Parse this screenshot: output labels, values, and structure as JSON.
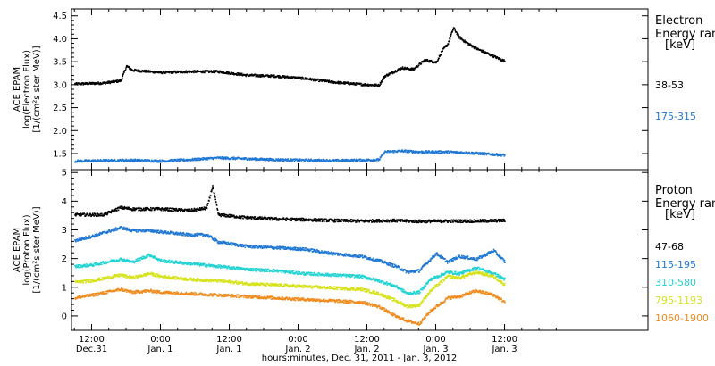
{
  "x_axis": {
    "title": "hours:minutes, Dec. 31, 2011 - Jan. 3, 2012",
    "range_hours": [
      -15.5,
      85
    ],
    "ticks": [
      {
        "hour": -12,
        "time": "12:00",
        "day": "Dec.31"
      },
      {
        "hour": 0,
        "time": "0:00",
        "day": "Jan. 1"
      },
      {
        "hour": 12,
        "time": "12:00",
        "day": "Jan. 1"
      },
      {
        "hour": 24,
        "time": "0:00",
        "day": "Jan. 2"
      },
      {
        "hour": 36,
        "time": "12:00",
        "day": "Jan. 2"
      },
      {
        "hour": 48,
        "time": "0:00",
        "day": "Jan. 3"
      },
      {
        "hour": 60,
        "time": "12:00",
        "day": "Jan. 3"
      }
    ]
  },
  "electron_panel": {
    "ylabel_lines": [
      "ACE EPAM",
      "log(Electron Flux)",
      "[1/(cm²s ster MeV)]"
    ],
    "side_title": [
      "Electron",
      "Energy ran",
      "[keV]"
    ],
    "yticks": [
      "1.5",
      "2.0",
      "2.5",
      "3.0",
      "3.5",
      "4.0",
      "4.5"
    ]
  },
  "proton_panel": {
    "ylabel_lines": [
      "ACE EPAM",
      "log(Proton Flux)",
      "[1/(cm²s ster MeV)]"
    ],
    "side_title": [
      "Proton",
      "Energy ran",
      "[keV]"
    ],
    "yticks": [
      "0",
      "1",
      "2",
      "3",
      "4",
      "5"
    ]
  },
  "chart_data": [
    {
      "type": "scatter",
      "xlabel": "hours:minutes, Dec. 31, 2011 - Jan. 3, 2012",
      "ylabel": "ACE EPAM log(Electron Flux) [1/(cm²s ster MeV)]",
      "ylim": [
        1.15,
        4.65
      ],
      "series": [
        {
          "name": "38-53",
          "color": "#000000",
          "x": [
            -15,
            -10,
            -7,
            -6,
            -5,
            0,
            5,
            10,
            15,
            20,
            25,
            30,
            35,
            38,
            39,
            42,
            44,
            46,
            48,
            49,
            50,
            51,
            52,
            53,
            55,
            60
          ],
          "y": [
            3.03,
            3.05,
            3.1,
            3.42,
            3.33,
            3.28,
            3.3,
            3.3,
            3.22,
            3.2,
            3.15,
            3.07,
            3.02,
            3.0,
            3.2,
            3.38,
            3.35,
            3.55,
            3.5,
            3.75,
            3.9,
            4.25,
            4.05,
            3.95,
            3.8,
            3.52
          ]
        },
        {
          "name": "175-315",
          "color": "#1f77d4",
          "x": [
            -15,
            -10,
            -5,
            0,
            5,
            10,
            15,
            20,
            25,
            30,
            35,
            38,
            39,
            42,
            45,
            50,
            55,
            60
          ],
          "y": [
            1.35,
            1.36,
            1.37,
            1.35,
            1.38,
            1.42,
            1.4,
            1.38,
            1.37,
            1.36,
            1.37,
            1.38,
            1.55,
            1.57,
            1.55,
            1.55,
            1.52,
            1.48
          ]
        }
      ]
    },
    {
      "type": "scatter",
      "xlabel": "hours:minutes, Dec. 31, 2011 - Jan. 3, 2012",
      "ylabel": "ACE EPAM log(Proton Flux) [1/(cm²s ster MeV)]",
      "ylim": [
        -0.5,
        5.1
      ],
      "series": [
        {
          "name": "47-68",
          "color": "#000000",
          "x": [
            -15,
            -10,
            -7,
            -5,
            0,
            5,
            8,
            9,
            10,
            15,
            20,
            25,
            30,
            35,
            40,
            45,
            50,
            55,
            60
          ],
          "y": [
            3.55,
            3.55,
            3.8,
            3.75,
            3.75,
            3.7,
            3.78,
            4.55,
            3.55,
            3.45,
            3.4,
            3.38,
            3.35,
            3.33,
            3.35,
            3.32,
            3.33,
            3.33,
            3.35
          ]
        },
        {
          "name": "115-195",
          "color": "#1f77d4",
          "x": [
            -15,
            -12,
            -7,
            -5,
            -2,
            0,
            5,
            8,
            10,
            15,
            20,
            25,
            30,
            35,
            38,
            41,
            43,
            45,
            48,
            50,
            52,
            55,
            58,
            60
          ],
          "y": [
            2.65,
            2.8,
            3.1,
            3.0,
            3.0,
            2.95,
            2.85,
            2.85,
            2.6,
            2.45,
            2.4,
            2.35,
            2.2,
            2.1,
            1.95,
            1.75,
            1.55,
            1.6,
            2.2,
            1.9,
            2.1,
            2.0,
            2.3,
            1.9
          ]
        },
        {
          "name": "310-580",
          "color": "#22d3d3",
          "x": [
            -15,
            -12,
            -7,
            -5,
            -2,
            0,
            5,
            10,
            15,
            20,
            25,
            30,
            35,
            38,
            41,
            43,
            45,
            47,
            50,
            52,
            55,
            58,
            60
          ],
          "y": [
            1.75,
            1.8,
            2.0,
            1.9,
            2.15,
            1.95,
            1.85,
            1.75,
            1.65,
            1.6,
            1.5,
            1.45,
            1.4,
            1.25,
            1.05,
            0.8,
            0.85,
            1.3,
            1.55,
            1.5,
            1.7,
            1.5,
            1.3
          ]
        },
        {
          "name": "795-1193",
          "color": "#d6e21a",
          "x": [
            -15,
            -12,
            -7,
            -5,
            -2,
            0,
            5,
            10,
            15,
            20,
            25,
            30,
            35,
            38,
            41,
            43,
            45,
            47,
            50,
            52,
            55,
            58,
            60
          ],
          "y": [
            1.2,
            1.25,
            1.45,
            1.35,
            1.5,
            1.4,
            1.3,
            1.25,
            1.15,
            1.1,
            1.05,
            1.0,
            0.95,
            0.8,
            0.55,
            0.35,
            0.4,
            0.9,
            1.4,
            1.35,
            1.55,
            1.4,
            1.1
          ]
        },
        {
          "name": "1060-1900",
          "color": "#f08a1c",
          "x": [
            -15,
            -12,
            -7,
            -5,
            -2,
            0,
            5,
            10,
            15,
            20,
            25,
            30,
            35,
            38,
            41,
            43,
            45,
            47,
            50,
            52,
            55,
            58,
            60
          ],
          "y": [
            0.65,
            0.75,
            0.95,
            0.85,
            0.9,
            0.85,
            0.8,
            0.75,
            0.7,
            0.65,
            0.6,
            0.55,
            0.5,
            0.35,
            0.0,
            -0.15,
            -0.25,
            0.2,
            0.65,
            0.7,
            0.9,
            0.75,
            0.5
          ]
        }
      ]
    }
  ]
}
